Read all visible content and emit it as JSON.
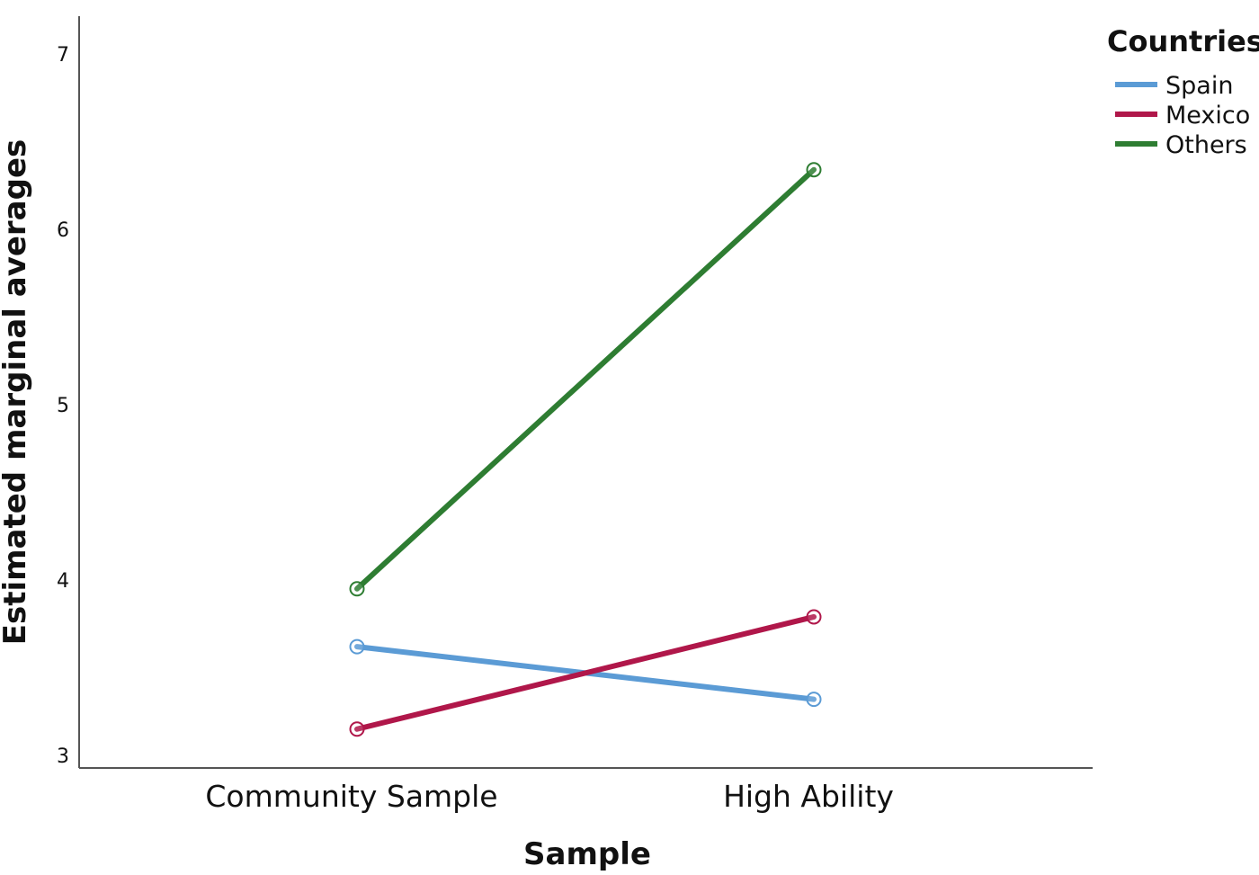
{
  "chart_data": {
    "type": "line",
    "title": "",
    "xlabel": "Sample",
    "ylabel": "Estimated marginal averages",
    "categories": [
      "Community Sample",
      "High Ability"
    ],
    "ylim": [
      2.98,
      7.22
    ],
    "yticks": [
      3,
      4,
      5,
      6,
      7
    ],
    "grid": false,
    "legend": {
      "title": "Countries",
      "position": "top-right"
    },
    "series": [
      {
        "name": "Spain",
        "color": "#5b9bd5",
        "values": [
          3.62,
          3.32
        ]
      },
      {
        "name": "Mexico",
        "color": "#b0174a",
        "values": [
          3.15,
          3.79
        ]
      },
      {
        "name": "Others",
        "color": "#2e7d32",
        "values": [
          3.95,
          6.34
        ]
      }
    ]
  }
}
